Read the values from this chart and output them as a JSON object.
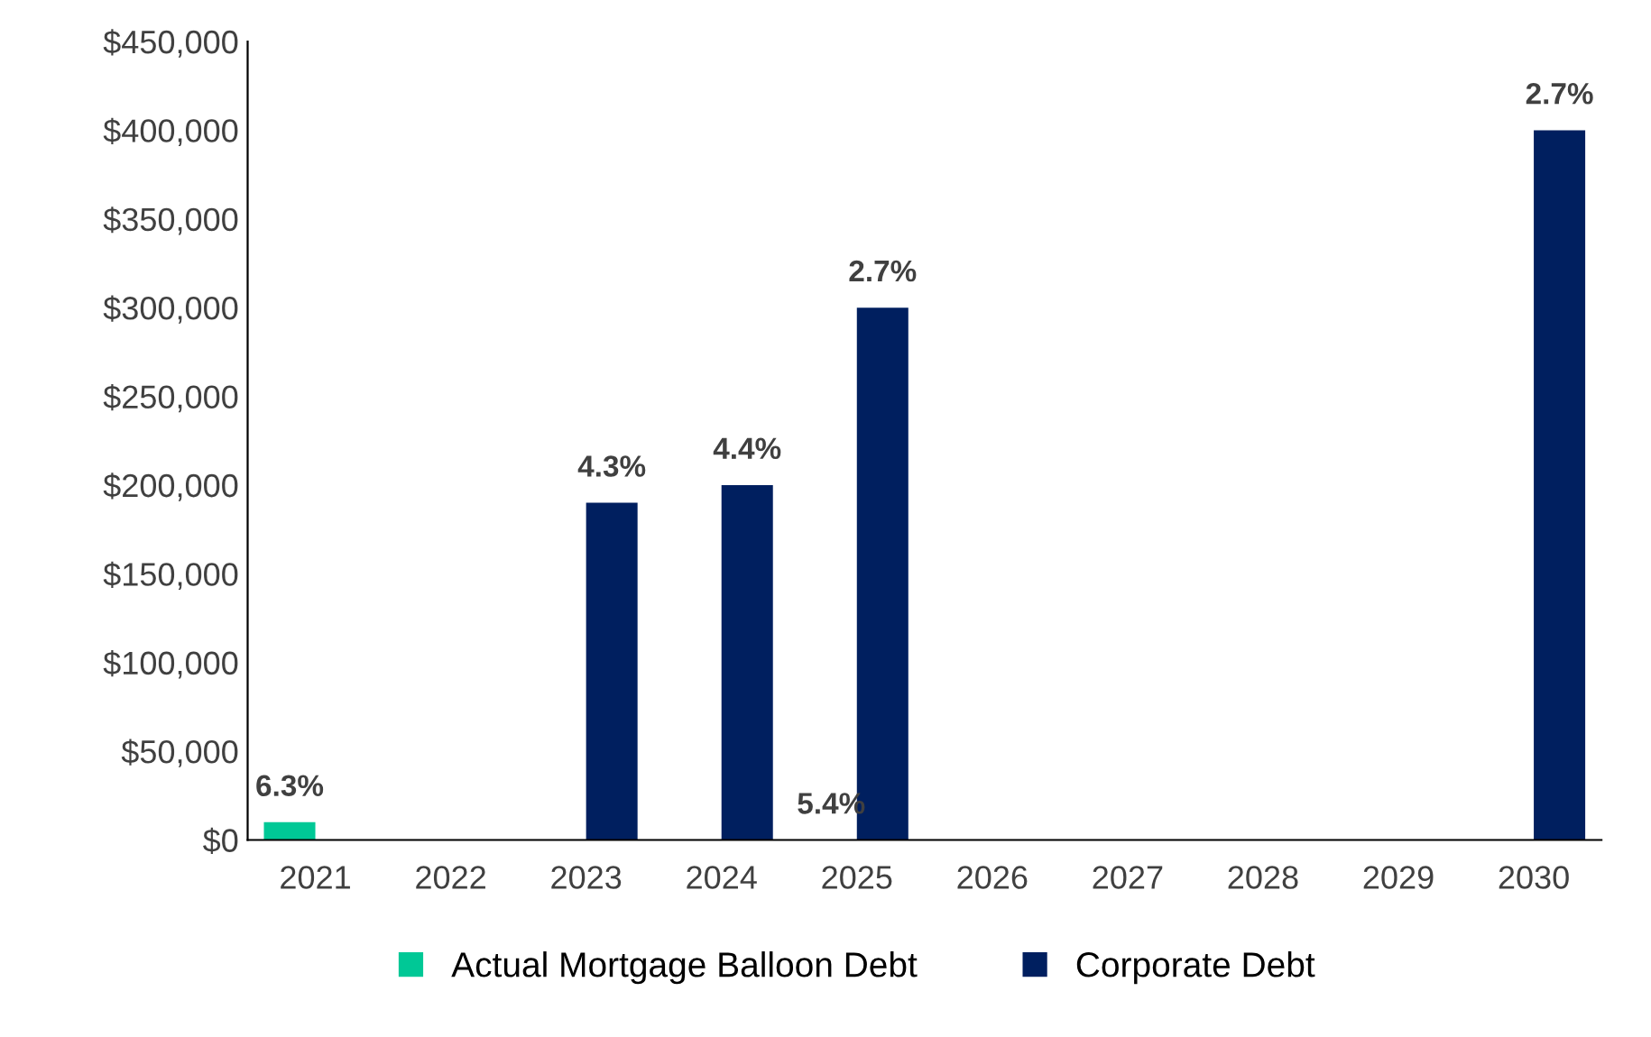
{
  "chart_data": {
    "type": "bar",
    "categories": [
      "2021",
      "2022",
      "2023",
      "2024",
      "2025",
      "2026",
      "2027",
      "2028",
      "2029",
      "2030"
    ],
    "series": [
      {
        "name": "Actual Mortgage Balloon Debt",
        "color": "#00c896",
        "values": [
          10000,
          0,
          0,
          0,
          0,
          0,
          0,
          0,
          0,
          0
        ]
      },
      {
        "name": "Corporate Debt",
        "color": "#001f5f",
        "values": [
          0,
          0,
          190000,
          200000,
          300000,
          0,
          0,
          0,
          0,
          400000
        ]
      }
    ],
    "annotations": [
      {
        "text": "6.3%",
        "x": "2021",
        "y": 10000
      },
      {
        "text": "5.4%",
        "x": "2025",
        "y": 0
      },
      {
        "text": "4.3%",
        "x": "2023",
        "y": 190000
      },
      {
        "text": "4.4%",
        "x": "2024",
        "y": 200000
      },
      {
        "text": "2.7%",
        "x": "2025",
        "y": 300000
      },
      {
        "text": "2.7%",
        "x": "2030",
        "y": 400000
      }
    ],
    "ylim": [
      0,
      450000
    ],
    "yticks": [
      {
        "value": 0,
        "label": "$0"
      },
      {
        "value": 50000,
        "label": "$50,000"
      },
      {
        "value": 100000,
        "label": "$100,000"
      },
      {
        "value": 150000,
        "label": "$150,000"
      },
      {
        "value": 200000,
        "label": "$200,000"
      },
      {
        "value": 250000,
        "label": "$250,000"
      },
      {
        "value": 300000,
        "label": "$300,000"
      },
      {
        "value": 350000,
        "label": "$350,000"
      },
      {
        "value": 400000,
        "label": "$400,000"
      },
      {
        "value": 450000,
        "label": "$450,000"
      }
    ],
    "grid": false,
    "legend": "bottom"
  }
}
